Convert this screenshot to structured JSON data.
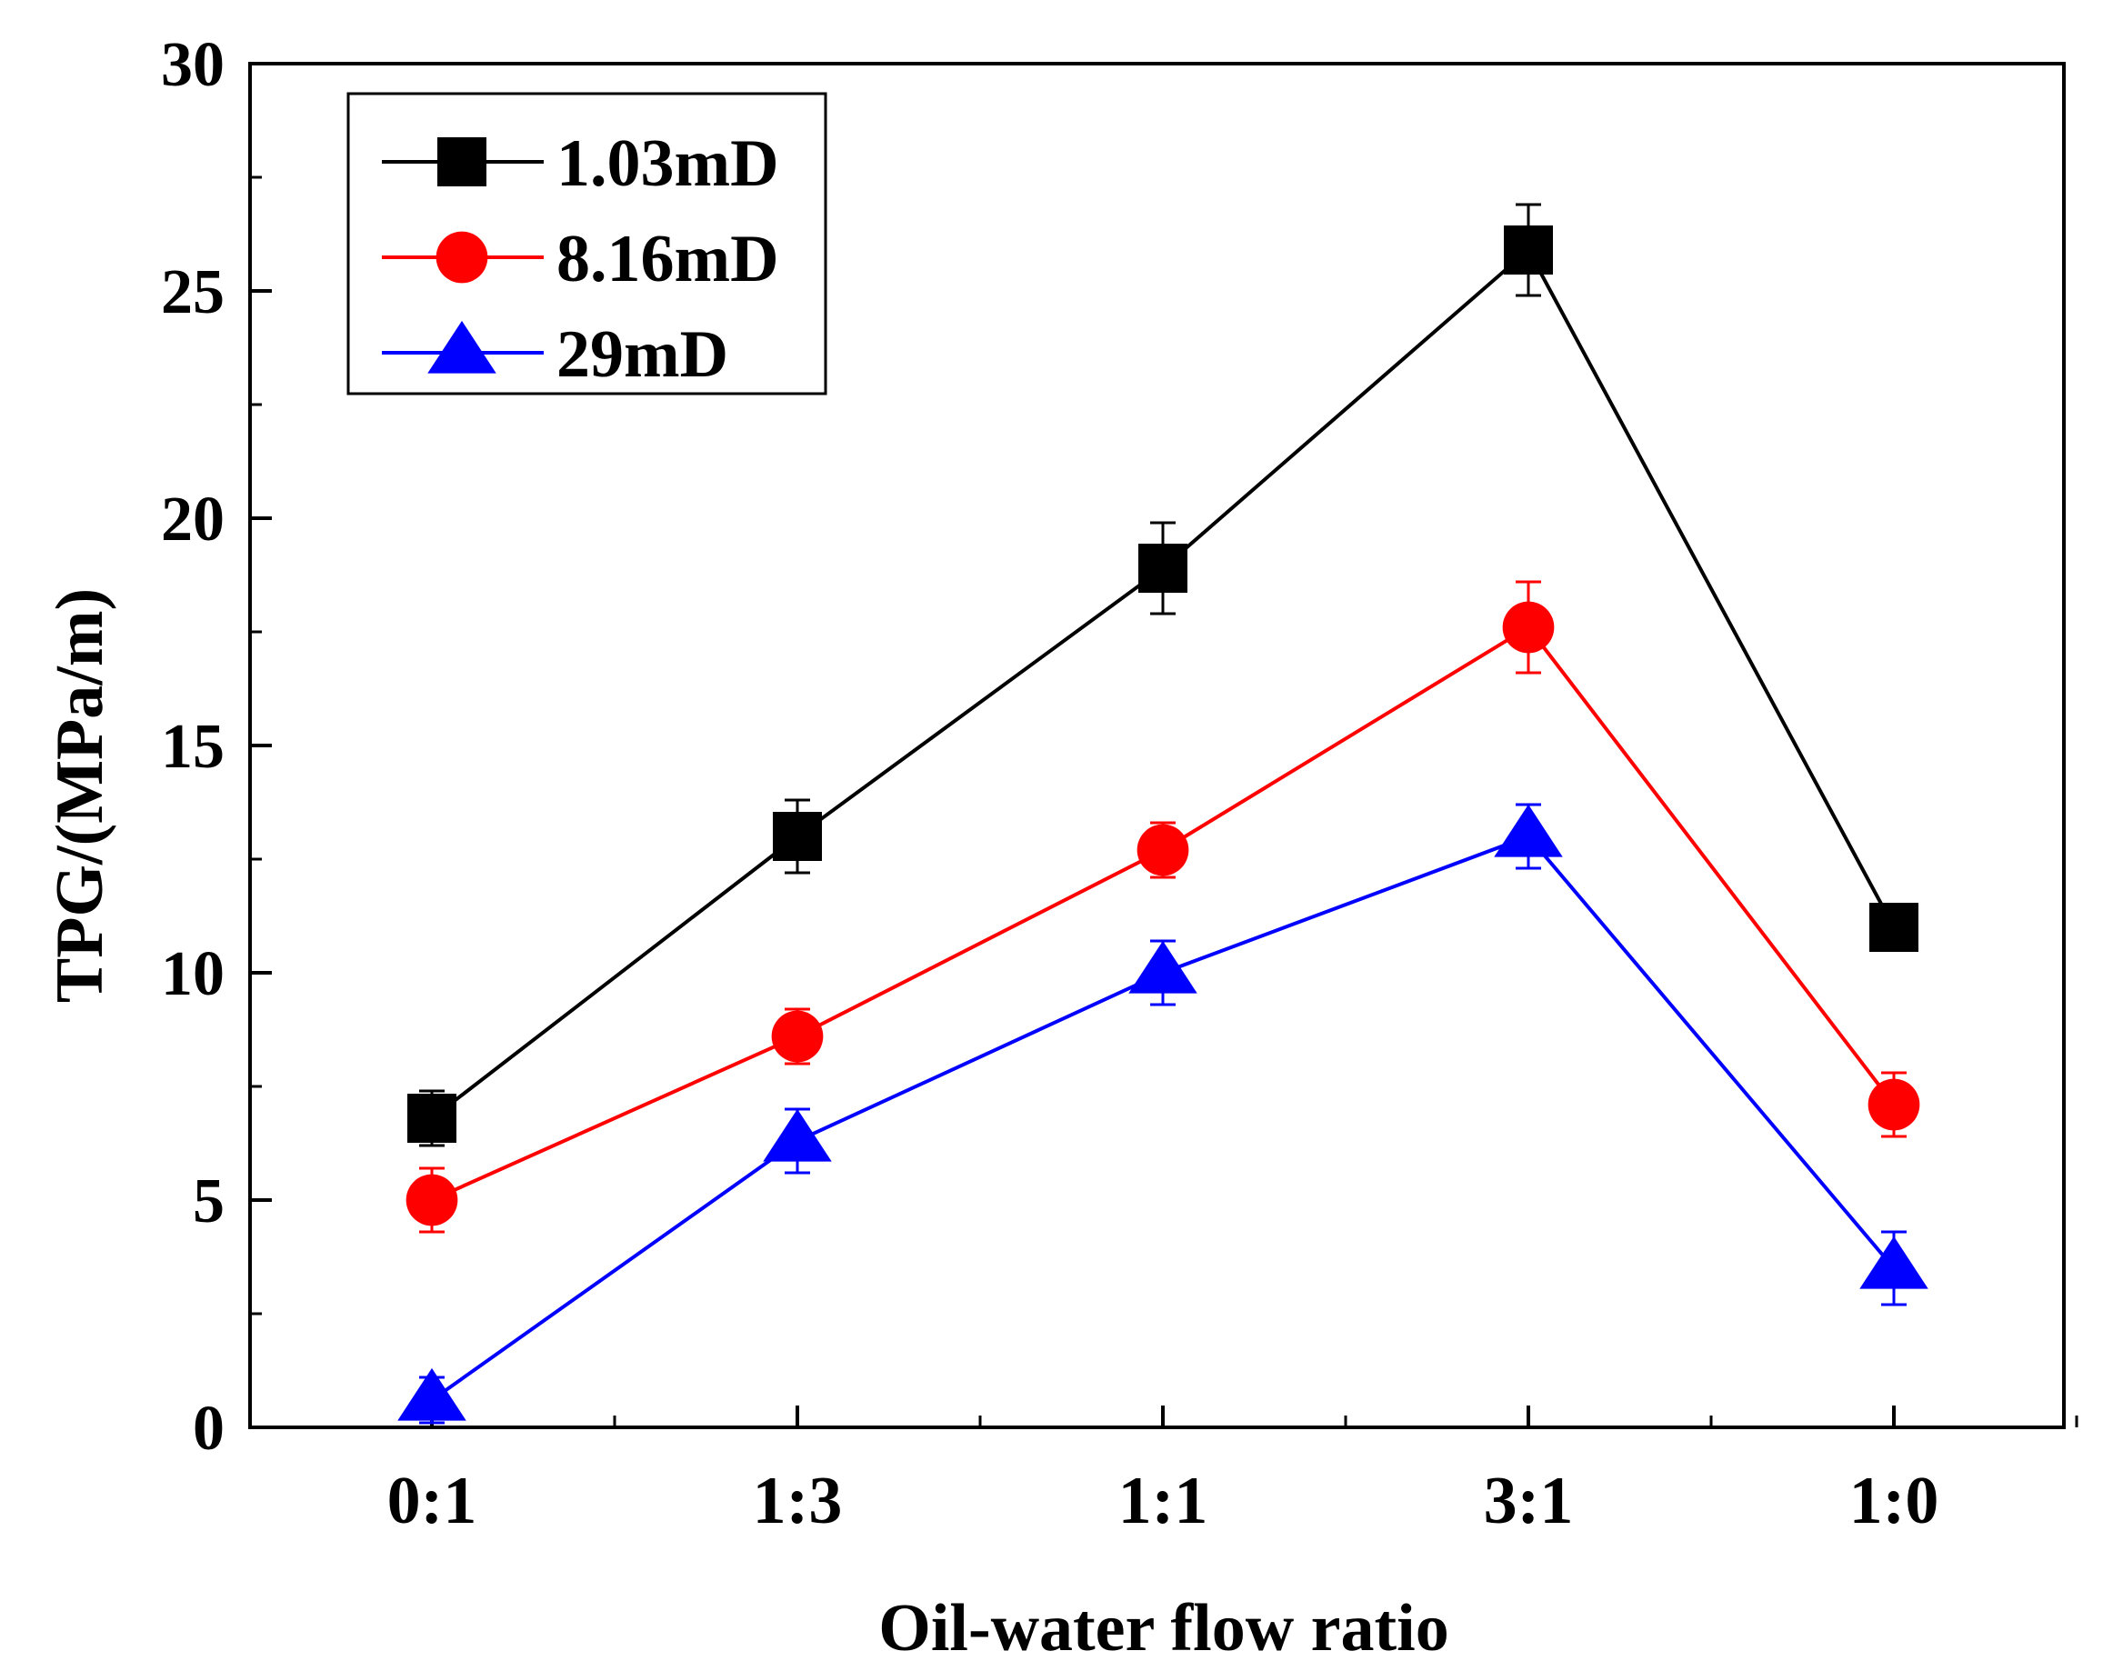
{
  "chart_data": {
    "type": "line",
    "title": "",
    "xlabel": "Oil-water flow ratio",
    "ylabel": "TPG/(MPa/m)",
    "categories": [
      "0:1",
      "1:3",
      "1:1",
      "3:1",
      "1:0"
    ],
    "ylim": [
      0,
      30
    ],
    "yticks": [
      0,
      5,
      10,
      15,
      20,
      25,
      30
    ],
    "grid": false,
    "legend_position": "top-left",
    "series": [
      {
        "name": "1.03mD",
        "color": "#000000",
        "marker": "square",
        "values": [
          6.8,
          13.0,
          18.9,
          25.9,
          11.0
        ],
        "errors": [
          0.6,
          0.8,
          1.0,
          1.0,
          0.5
        ]
      },
      {
        "name": "8.16mD",
        "color": "#ff0000",
        "marker": "circle",
        "values": [
          5.0,
          8.6,
          12.7,
          17.6,
          7.1
        ],
        "errors": [
          0.7,
          0.6,
          0.6,
          1.0,
          0.7
        ]
      },
      {
        "name": "29mD",
        "color": "#0000ff",
        "marker": "triangle",
        "values": [
          0.6,
          6.3,
          10.0,
          13.0,
          3.5
        ],
        "errors": [
          0.5,
          0.7,
          0.7,
          0.7,
          0.8
        ]
      }
    ]
  }
}
